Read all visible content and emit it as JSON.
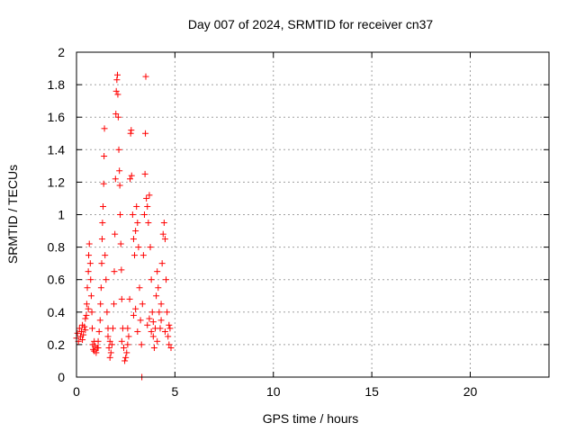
{
  "chart_data": {
    "type": "scatter",
    "title": "Day 007 of 2024, SRMTID for receiver cn37",
    "xlabel": "GPS time / hours",
    "ylabel": "SRMTID / TECUs",
    "xlim": [
      0,
      24
    ],
    "ylim": [
      0,
      2
    ],
    "xticks": [
      0,
      5,
      10,
      15,
      20
    ],
    "yticks": [
      0,
      0.2,
      0.4,
      0.6,
      0.8,
      1,
      1.2,
      1.4,
      1.6,
      1.8,
      2
    ],
    "ytick_labels": [
      "0",
      "0.2",
      "0.4",
      "0.6",
      "0.8",
      "1",
      "1.2",
      "1.4",
      "1.6",
      "1.8",
      "2"
    ],
    "xtick_labels": [
      "0",
      "5",
      "10",
      "15",
      "20"
    ],
    "grid": true,
    "marker": "+",
    "color": "#ff0000",
    "series": [
      {
        "name": "SRMTID",
        "points": [
          [
            0.0,
            0.24
          ],
          [
            0.05,
            0.27
          ],
          [
            0.1,
            0.22
          ],
          [
            0.15,
            0.3
          ],
          [
            0.2,
            0.25
          ],
          [
            0.25,
            0.28
          ],
          [
            0.3,
            0.23
          ],
          [
            0.35,
            0.26
          ],
          [
            0.4,
            0.31
          ],
          [
            0.45,
            0.29
          ],
          [
            0.5,
            0.38
          ],
          [
            0.52,
            0.45
          ],
          [
            0.55,
            0.55
          ],
          [
            0.6,
            0.65
          ],
          [
            0.62,
            0.75
          ],
          [
            0.65,
            0.82
          ],
          [
            0.7,
            0.7
          ],
          [
            0.72,
            0.6
          ],
          [
            0.75,
            0.5
          ],
          [
            0.78,
            0.4
          ],
          [
            0.8,
            0.3
          ],
          [
            0.82,
            0.2
          ],
          [
            0.85,
            0.17
          ],
          [
            0.9,
            0.16
          ],
          [
            0.95,
            0.19
          ],
          [
            1.0,
            0.15
          ],
          [
            1.05,
            0.18
          ],
          [
            1.1,
            0.22
          ],
          [
            1.15,
            0.28
          ],
          [
            1.2,
            0.35
          ],
          [
            1.22,
            0.45
          ],
          [
            1.25,
            0.55
          ],
          [
            1.28,
            0.7
          ],
          [
            1.3,
            0.85
          ],
          [
            1.32,
            0.95
          ],
          [
            1.35,
            1.05
          ],
          [
            1.38,
            1.19
          ],
          [
            1.4,
            1.36
          ],
          [
            1.42,
            1.53
          ],
          [
            1.45,
            0.75
          ],
          [
            1.5,
            0.6
          ],
          [
            1.55,
            0.4
          ],
          [
            1.6,
            0.25
          ],
          [
            1.65,
            0.18
          ],
          [
            1.7,
            0.12
          ],
          [
            1.75,
            0.15
          ],
          [
            1.8,
            0.2
          ],
          [
            1.85,
            0.3
          ],
          [
            1.9,
            0.45
          ],
          [
            1.92,
            0.65
          ],
          [
            1.95,
            0.88
          ],
          [
            1.98,
            1.22
          ],
          [
            2.0,
            1.62
          ],
          [
            2.02,
            1.76
          ],
          [
            2.05,
            1.83
          ],
          [
            2.08,
            1.86
          ],
          [
            2.1,
            1.74
          ],
          [
            2.12,
            1.6
          ],
          [
            2.15,
            1.4
          ],
          [
            2.18,
            1.27
          ],
          [
            2.2,
            1.18
          ],
          [
            2.22,
            1.0
          ],
          [
            2.25,
            0.82
          ],
          [
            2.28,
            0.66
          ],
          [
            2.3,
            0.48
          ],
          [
            2.35,
            0.3
          ],
          [
            2.4,
            0.18
          ],
          [
            2.45,
            0.1
          ],
          [
            2.5,
            0.12
          ],
          [
            2.55,
            0.15
          ],
          [
            2.6,
            0.2
          ],
          [
            2.65,
            0.25
          ],
          [
            2.7,
            0.48
          ],
          [
            2.72,
            1.22
          ],
          [
            2.75,
            1.5
          ],
          [
            2.78,
            1.52
          ],
          [
            2.8,
            1.24
          ],
          [
            2.85,
            1.0
          ],
          [
            2.9,
            0.85
          ],
          [
            2.95,
            0.75
          ],
          [
            3.0,
            0.9
          ],
          [
            3.05,
            1.05
          ],
          [
            3.1,
            0.95
          ],
          [
            3.15,
            0.8
          ],
          [
            3.2,
            0.55
          ],
          [
            3.25,
            0.35
          ],
          [
            3.3,
            0.2
          ],
          [
            3.32,
            0.0
          ],
          [
            3.35,
            0.45
          ],
          [
            3.4,
            0.75
          ],
          [
            3.45,
            1.0
          ],
          [
            3.48,
            1.25
          ],
          [
            3.5,
            1.5
          ],
          [
            3.52,
            1.85
          ],
          [
            3.55,
            1.1
          ],
          [
            3.6,
            1.05
          ],
          [
            3.65,
            0.95
          ],
          [
            3.7,
            1.12
          ],
          [
            3.75,
            0.8
          ],
          [
            3.8,
            0.6
          ],
          [
            3.85,
            0.4
          ],
          [
            3.9,
            0.25
          ],
          [
            3.95,
            0.18
          ],
          [
            4.0,
            0.3
          ],
          [
            4.05,
            0.5
          ],
          [
            4.1,
            0.65
          ],
          [
            4.15,
            0.55
          ],
          [
            4.2,
            0.4
          ],
          [
            4.25,
            0.3
          ],
          [
            4.3,
            0.45
          ],
          [
            4.35,
            0.7
          ],
          [
            4.4,
            0.88
          ],
          [
            4.45,
            0.95
          ],
          [
            4.5,
            0.85
          ],
          [
            4.55,
            0.6
          ],
          [
            4.6,
            0.4
          ],
          [
            4.65,
            0.25
          ],
          [
            4.7,
            0.2
          ],
          [
            4.75,
            0.3
          ],
          [
            4.8,
            0.18
          ],
          [
            0.3,
            0.32
          ],
          [
            0.45,
            0.36
          ],
          [
            0.6,
            0.42
          ],
          [
            0.9,
            0.22
          ],
          [
            1.1,
            0.18
          ],
          [
            1.6,
            0.3
          ],
          [
            1.7,
            0.22
          ],
          [
            2.3,
            0.22
          ],
          [
            2.6,
            0.3
          ],
          [
            2.9,
            0.38
          ],
          [
            3.0,
            0.42
          ],
          [
            3.1,
            0.28
          ],
          [
            3.6,
            0.32
          ],
          [
            3.7,
            0.36
          ],
          [
            3.8,
            0.28
          ],
          [
            3.9,
            0.34
          ],
          [
            4.1,
            0.22
          ],
          [
            4.3,
            0.35
          ],
          [
            4.5,
            0.28
          ],
          [
            4.7,
            0.32
          ]
        ]
      }
    ]
  }
}
